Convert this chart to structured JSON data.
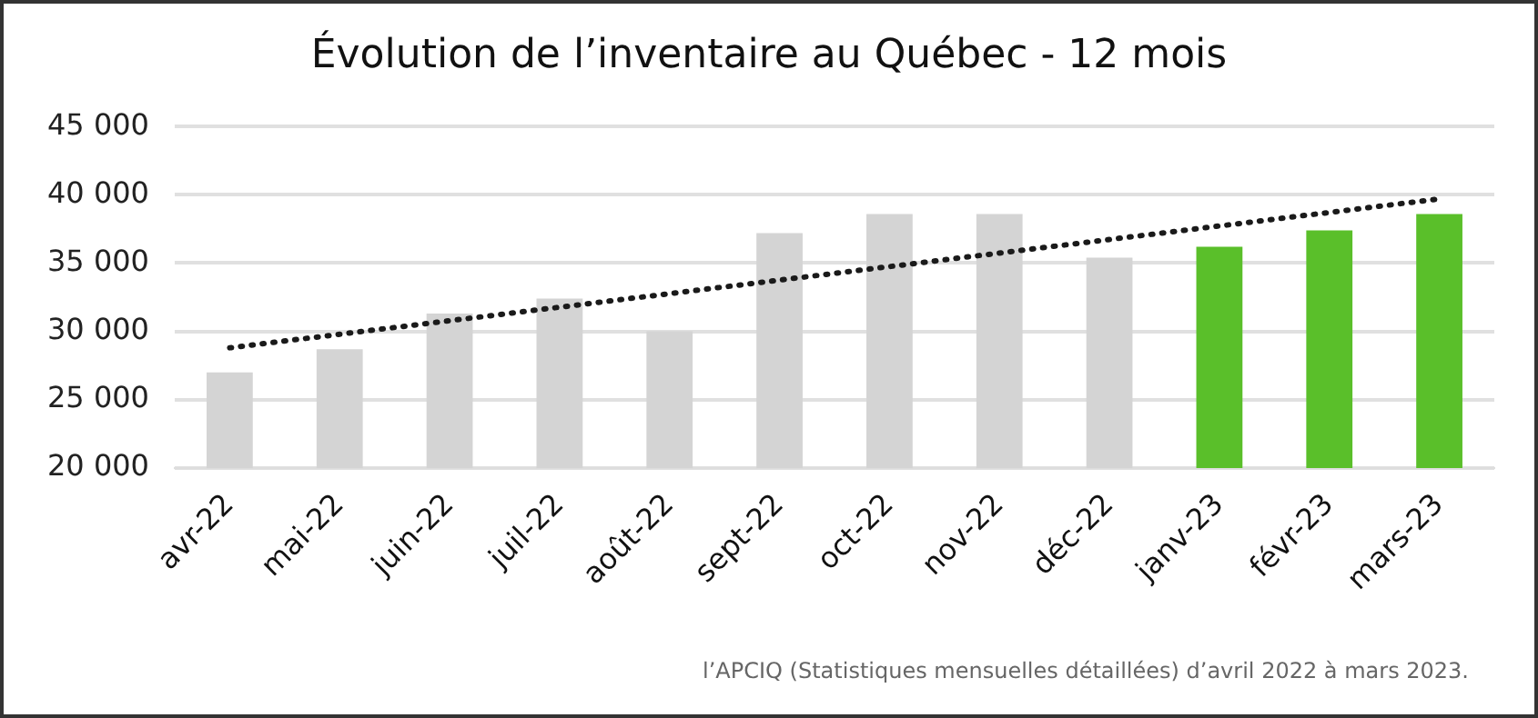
{
  "chart_data": {
    "type": "bar",
    "title": "Évolution de l’inventaire au Québec - 12 mois",
    "categories": [
      "avr-22",
      "mai-22",
      "juin-22",
      "juil-22",
      "août-22",
      "sept-22",
      "oct-22",
      "nov-22",
      "déc-22",
      "janv-23",
      "févr-23",
      "mars-23"
    ],
    "series": [
      {
        "values": [
          27000,
          28700,
          31300,
          32400,
          30000,
          37200,
          38600,
          38600,
          35400,
          36200,
          37400,
          38600
        ],
        "colors": [
          "#d4d4d4",
          "#d4d4d4",
          "#d4d4d4",
          "#d4d4d4",
          "#d4d4d4",
          "#d4d4d4",
          "#d4d4d4",
          "#d4d4d4",
          "#d4d4d4",
          "#5abf2a",
          "#5abf2a",
          "#5abf2a"
        ]
      },
      {
        "type": "line",
        "color": "#1a1a1a",
        "line_style": "dotted",
        "marker": "none",
        "x": [
          "avr-22",
          "mars-23"
        ],
        "values": [
          28800,
          39700
        ]
      }
    ],
    "ylim": [
      20000,
      45000
    ],
    "yticks": [
      {
        "value": 20000,
        "label": "20 000"
      },
      {
        "value": 25000,
        "label": "25 000"
      },
      {
        "value": 30000,
        "label": "30 000"
      },
      {
        "value": 35000,
        "label": "35 000"
      },
      {
        "value": 40000,
        "label": "40 000"
      },
      {
        "value": 45000,
        "label": "45 000"
      }
    ],
    "grid": "y",
    "legend": false,
    "annotations": [
      "l’APCIQ (Statistiques mensuelles détaillées) d’avril 2022 à mars 2023."
    ]
  }
}
